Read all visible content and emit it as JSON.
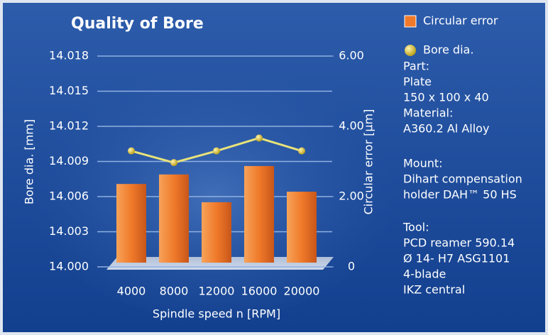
{
  "chart_data": {
    "type": "bar-line",
    "title": "Quality of Bore",
    "x_label": "Spindle speed n [RPM]",
    "y_label": "Bore dia. [mm]",
    "y2_label": "Circular error [µm]",
    "categories": [
      "4000",
      "8000",
      "12000",
      "16000",
      "20000"
    ],
    "series": [
      {
        "name": "Circular error",
        "type": "bar",
        "axis": "y2",
        "color": "#f07a2a",
        "values": [
          2.36,
          2.63,
          1.84,
          2.87,
          2.14
        ]
      },
      {
        "name": "Bore dia.",
        "type": "line",
        "color": "#e8e27a",
        "values": [
          14.0099,
          14.0089,
          14.0099,
          14.011,
          14.0099
        ]
      }
    ],
    "ylim": [
      14.0,
      14.018
    ],
    "yticks": [
      {
        "value": 14.0,
        "label": "14.000"
      },
      {
        "value": 14.003,
        "label": "14.003"
      },
      {
        "value": 14.006,
        "label": "14.006"
      },
      {
        "value": 14.009,
        "label": "14.009"
      },
      {
        "value": 14.012,
        "label": "14.012"
      },
      {
        "value": 14.015,
        "label": "14.015"
      },
      {
        "value": 14.018,
        "label": "14.018"
      }
    ],
    "y2lim": [
      0,
      6
    ],
    "y2ticks": [
      0,
      {
        "value": 2,
        "label": "2.00"
      },
      {
        "value": 4,
        "label": "4.00"
      },
      {
        "value": 6,
        "label": "6.00"
      }
    ],
    "grid": true,
    "annotations": [
      [
        "Part:",
        "Plate",
        "150 x 100 x 40",
        "Material:",
        "A360.2 Al Alloy"
      ],
      [
        "Mount:",
        "Dihart compensation",
        "holder DAH™ 50 HS"
      ],
      [
        "Tool:",
        "PCD reamer 590.14",
        "Ø 14- H7 ASG1101",
        "4-blade",
        "IKZ central"
      ]
    ]
  }
}
